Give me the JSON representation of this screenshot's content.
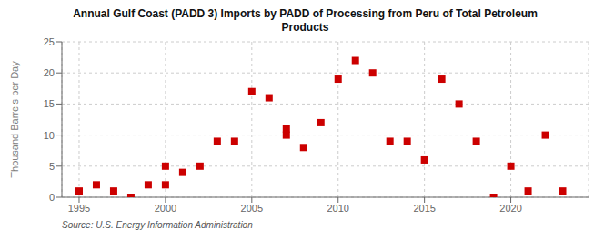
{
  "chart_data": {
    "type": "scatter",
    "title": "Annual Gulf Coast (PADD 3) Imports by PADD of Processing from Peru of Total Petroleum\nProducts",
    "y_label": "Thousand Barrels per Day",
    "annotations": [
      "Source: U.S. Energy Information Administration"
    ],
    "x": [
      1995,
      1996,
      1997,
      1998,
      1999,
      2000,
      2000,
      2001,
      2002,
      2003,
      2004,
      2005,
      2006,
      2007,
      2007,
      2008,
      2009,
      2010,
      2011,
      2012,
      2013,
      2014,
      2015,
      2016,
      2017,
      2018,
      2019,
      2020,
      2021,
      2022,
      2023
    ],
    "values": [
      1,
      2,
      1,
      0,
      2,
      5,
      2,
      4,
      5,
      9,
      9,
      17,
      16,
      10,
      11,
      8,
      12,
      19,
      22,
      20,
      9,
      9,
      6,
      19,
      15,
      9,
      0,
      5,
      1,
      10,
      1
    ],
    "color": "#cc0000",
    "marker": "square",
    "xlim": [
      1994.0,
      2024.5
    ],
    "ylim": [
      0,
      25
    ],
    "xticks": [
      1995,
      2000,
      2005,
      2010,
      2015,
      2020
    ],
    "yticks": [
      0,
      5,
      10,
      15,
      20,
      25
    ],
    "grid": true
  }
}
